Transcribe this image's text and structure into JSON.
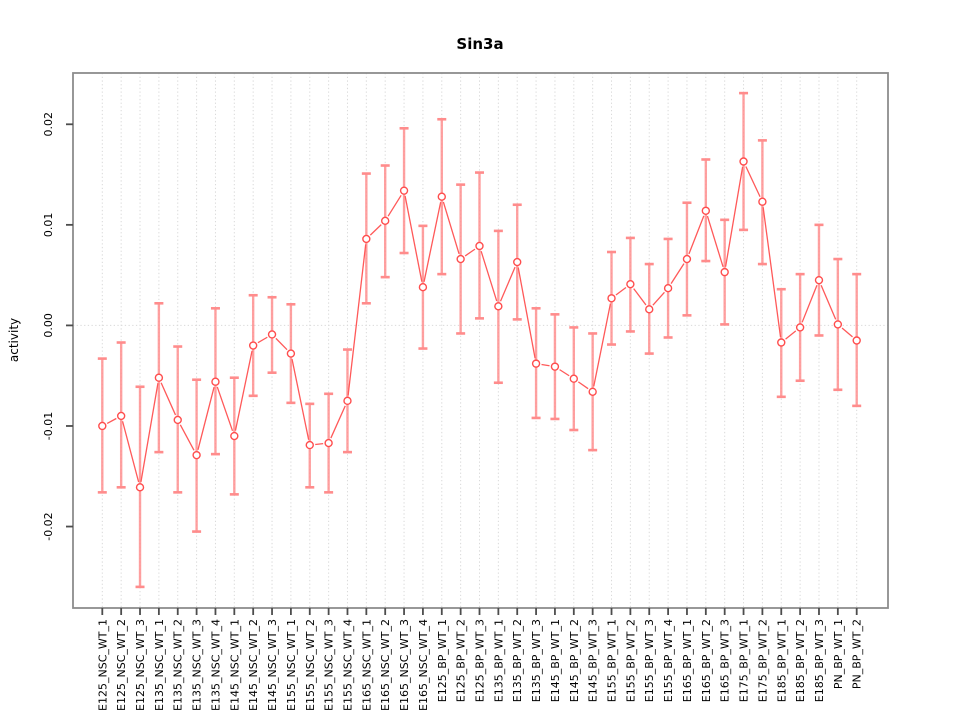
{
  "chart_data": {
    "type": "line",
    "title": "Sin3a",
    "ylabel": "activity",
    "xlabel": "",
    "legend": "none",
    "grid": "vertical dotted gridline per category; dotted horizontal line at 0.00",
    "ylim": [
      -0.0281,
      0.0251
    ],
    "yticks": [
      -0.02,
      -0.01,
      0,
      0.01,
      0.02
    ],
    "ytick_labels": [
      "-0.02",
      "-0.01",
      "0.00",
      "0.01",
      "0.02"
    ],
    "marker": "open-circle",
    "colors": {
      "point": "#ff4d4d",
      "segment": "#ff5959",
      "error_bar": "#ff9090",
      "error_cap": "#ff8c8c",
      "gridline": "#d9d9d9",
      "box": "#8c8c8c",
      "tick": "#4d4d4d"
    },
    "categories": [
      "E125_NSC_WT_1",
      "E125_NSC_WT_2",
      "E125_NSC_WT_3",
      "E135_NSC_WT_1",
      "E135_NSC_WT_2",
      "E135_NSC_WT_3",
      "E135_NSC_WT_4",
      "E145_NSC_WT_1",
      "E145_NSC_WT_2",
      "E145_NSC_WT_3",
      "E155_NSC_WT_1",
      "E155_NSC_WT_2",
      "E155_NSC_WT_3",
      "E155_NSC_WT_4",
      "E165_NSC_WT_1",
      "E165_NSC_WT_2",
      "E165_NSC_WT_3",
      "E165_NSC_WT_4",
      "E125_BP_WT_1",
      "E125_BP_WT_2",
      "E125_BP_WT_3",
      "E135_BP_WT_1",
      "E135_BP_WT_2",
      "E135_BP_WT_3",
      "E145_BP_WT_1",
      "E145_BP_WT_2",
      "E145_BP_WT_3",
      "E155_BP_WT_1",
      "E155_BP_WT_2",
      "E155_BP_WT_3",
      "E155_BP_WT_4",
      "E165_BP_WT_1",
      "E165_BP_WT_2",
      "E165_BP_WT_3",
      "E175_BP_WT_1",
      "E175_BP_WT_2",
      "E185_BP_WT_1",
      "E185_BP_WT_2",
      "E185_BP_WT_3",
      "PN_BP_WT_1",
      "PN_BP_WT_2"
    ],
    "series": [
      {
        "name": "activity",
        "values": [
          -0.01,
          -0.009,
          -0.0161,
          -0.0052,
          -0.0094,
          -0.0129,
          -0.0056,
          -0.011,
          -0.002,
          -0.0009,
          -0.0028,
          -0.0119,
          -0.0117,
          -0.0075,
          0.0086,
          0.0104,
          0.0134,
          0.0038,
          0.0128,
          0.0066,
          0.0079,
          0.0019,
          0.0063,
          -0.0038,
          -0.0041,
          -0.0053,
          -0.0066,
          0.0027,
          0.0041,
          0.0016,
          0.0037,
          0.0066,
          0.0114,
          0.0053,
          0.0163,
          0.0123,
          -0.0017,
          -0.0002,
          0.0045,
          0.0001,
          -0.0015
        ],
        "lower": [
          -0.0166,
          -0.0161,
          -0.026,
          -0.0126,
          -0.0166,
          -0.0205,
          -0.0128,
          -0.0168,
          -0.007,
          -0.0047,
          -0.0077,
          -0.0161,
          -0.0166,
          -0.0126,
          0.0022,
          0.0048,
          0.0072,
          -0.0023,
          0.0051,
          -0.0008,
          0.0007,
          -0.0057,
          0.0006,
          -0.0092,
          -0.0093,
          -0.0104,
          -0.0124,
          -0.0019,
          -0.0006,
          -0.0028,
          -0.0012,
          0.001,
          0.0064,
          0.0001,
          0.0095,
          0.0061,
          -0.0071,
          -0.0055,
          -0.001,
          -0.0064,
          -0.008
        ],
        "upper": [
          -0.0033,
          -0.0017,
          -0.0061,
          0.0022,
          -0.0021,
          -0.0054,
          0.0017,
          -0.0052,
          0.003,
          0.0028,
          0.0021,
          -0.0078,
          -0.0068,
          -0.0024,
          0.0151,
          0.0159,
          0.0196,
          0.0099,
          0.0205,
          0.014,
          0.0152,
          0.0094,
          0.012,
          0.0017,
          0.0011,
          -0.0002,
          -0.0008,
          0.0073,
          0.0087,
          0.0061,
          0.0086,
          0.0122,
          0.0165,
          0.0105,
          0.0231,
          0.0184,
          0.0036,
          0.0051,
          0.01,
          0.0066,
          0.0051
        ]
      }
    ]
  }
}
